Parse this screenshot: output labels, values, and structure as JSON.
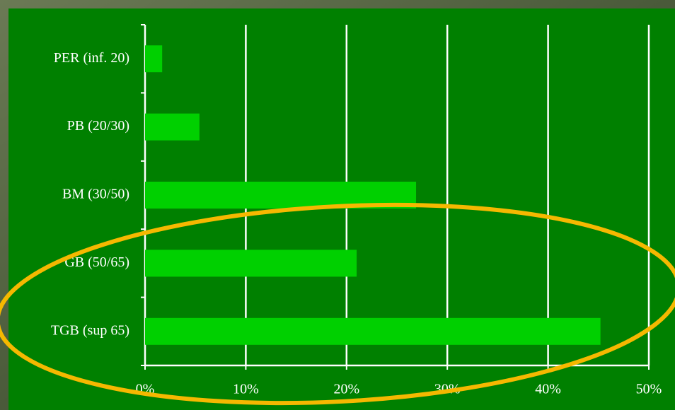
{
  "chart_data": {
    "type": "bar",
    "orientation": "horizontal",
    "categories": [
      "PER (inf. 20)",
      "PB (20/30)",
      "BM (30/50)",
      "GB (50/65)",
      "TGB (sup 65)"
    ],
    "values": [
      1.7,
      5.4,
      26.9,
      21.0,
      45.2
    ],
    "color": "#00d000",
    "xlim": [
      0,
      50
    ],
    "xticks": [
      {
        "value": 0,
        "label": "0%"
      },
      {
        "value": 10,
        "label": "10%"
      },
      {
        "value": 20,
        "label": "20%"
      },
      {
        "value": 30,
        "label": "30%"
      },
      {
        "value": 40,
        "label": "40%"
      },
      {
        "value": 50,
        "label": "50%"
      }
    ],
    "grid": true
  }
}
